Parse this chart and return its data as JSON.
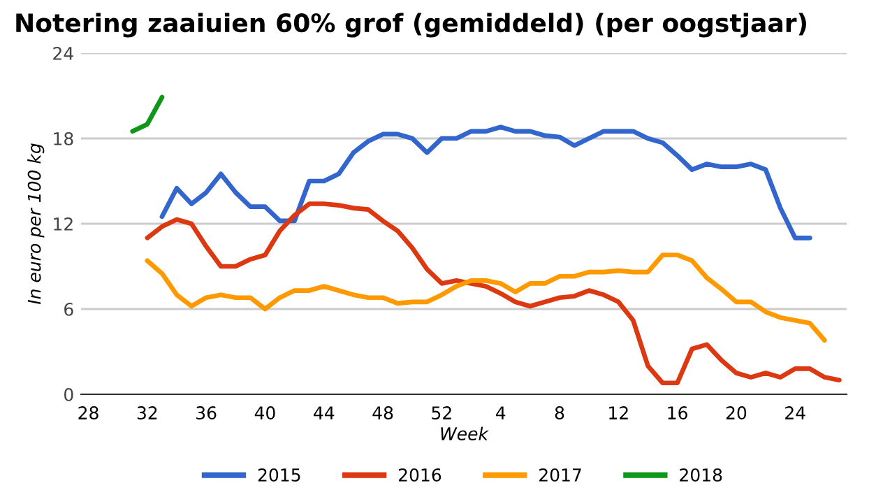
{
  "chart_data": {
    "type": "line",
    "title": "Notering zaaiuien 60% grof (gemiddeld) (per oogstjaar)",
    "xlabel": "Week",
    "ylabel": "In euro per 100 kg",
    "categories": [
      "28",
      null,
      null,
      null,
      "32",
      null,
      null,
      null,
      "36",
      null,
      null,
      null,
      "40",
      null,
      null,
      null,
      "44",
      null,
      null,
      null,
      "48",
      null,
      null,
      null,
      "52",
      null,
      null,
      null,
      "4",
      null,
      null,
      null,
      "8",
      null,
      null,
      null,
      "12",
      null,
      null,
      null,
      "16",
      null,
      null,
      null,
      "20",
      null,
      null,
      null,
      "24",
      null,
      null,
      null
    ],
    "series": [
      {
        "name": "2015",
        "color": "#3366cc",
        "values": [
          null,
          null,
          null,
          null,
          null,
          12.5,
          14.5,
          13.4,
          14.2,
          15.5,
          14.2,
          13.2,
          13.2,
          12.2,
          12.2,
          15.0,
          15.0,
          15.5,
          17.0,
          17.8,
          18.3,
          18.3,
          18.0,
          17.0,
          18.0,
          18.0,
          18.5,
          18.5,
          18.8,
          18.5,
          18.5,
          18.2,
          18.1,
          17.5,
          18.0,
          18.5,
          18.5,
          18.5,
          18.0,
          17.7,
          16.8,
          15.8,
          16.2,
          16.0,
          16.0,
          16.2,
          15.8,
          13.1,
          11.0,
          11.0,
          null,
          null
        ]
      },
      {
        "name": "2016",
        "color": "#dc3912",
        "values": [
          null,
          null,
          null,
          null,
          11.0,
          11.8,
          12.3,
          12.0,
          10.4,
          9.0,
          9.0,
          9.5,
          9.8,
          11.5,
          12.6,
          13.4,
          13.4,
          13.3,
          13.1,
          13.0,
          12.2,
          11.5,
          10.3,
          8.8,
          7.8,
          8.0,
          7.8,
          7.6,
          7.1,
          6.5,
          6.2,
          6.5,
          6.8,
          6.9,
          7.3,
          7.0,
          6.5,
          5.2,
          2.0,
          0.8,
          0.8,
          3.2,
          3.5,
          2.4,
          1.5,
          1.2,
          1.5,
          1.2,
          1.8,
          1.8,
          1.2,
          1.0
        ]
      },
      {
        "name": "2017",
        "color": "#ff9900",
        "values": [
          null,
          null,
          null,
          null,
          9.4,
          8.5,
          7.0,
          6.2,
          6.8,
          7.0,
          6.8,
          6.8,
          6.0,
          6.8,
          7.3,
          7.3,
          7.6,
          7.3,
          7.0,
          6.8,
          6.8,
          6.4,
          6.5,
          6.5,
          7.0,
          7.6,
          8.0,
          8.0,
          7.8,
          7.2,
          7.8,
          7.8,
          8.3,
          8.3,
          8.6,
          8.6,
          8.7,
          8.6,
          8.6,
          9.8,
          9.8,
          9.4,
          8.2,
          7.4,
          6.5,
          6.5,
          5.8,
          5.4,
          5.2,
          5.0,
          3.8,
          null
        ]
      },
      {
        "name": "2018",
        "color": "#109618",
        "values": [
          null,
          null,
          null,
          18.5,
          19.0,
          20.9,
          null,
          null,
          null,
          null,
          null,
          null,
          null,
          null,
          null,
          null,
          null,
          null,
          null,
          null,
          null,
          null,
          null,
          null,
          null,
          null,
          null,
          null,
          null,
          null,
          null,
          null,
          null,
          null,
          null,
          null,
          null,
          null,
          null,
          null,
          null,
          null,
          null,
          null,
          null,
          null,
          null,
          null,
          null,
          null,
          null,
          null
        ]
      }
    ],
    "ylim": [
      0,
      24
    ],
    "yticks": [
      0,
      6,
      12,
      18,
      24
    ],
    "grid": "y",
    "legend": "bottom",
    "marker": "none",
    "line_style": "solid"
  }
}
